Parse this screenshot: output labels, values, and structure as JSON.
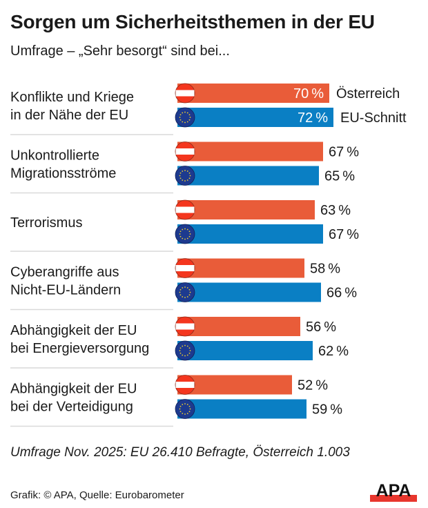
{
  "header": {
    "title": "Sorgen um Sicherheitsthemen in der EU",
    "subtitle": "Umfrage – „Sehr besorgt“ sind bei..."
  },
  "footer": {
    "note": "Umfrage Nov. 2025: EU 26.410 Befragte, Österreich 1.003",
    "credit": "Grafik: © APA, Quelle: Eurobarometer",
    "logo": "APA"
  },
  "colors": {
    "austria": "#e95c39",
    "eu": "#0a7fc4",
    "eu_flag": "#1d3a8f",
    "star": "#f2d22c",
    "logo_red": "#e8362d"
  },
  "chart_data": {
    "type": "bar",
    "orientation": "horizontal",
    "title": "Sorgen um Sicherheitsthemen in der EU",
    "subtitle": "Umfrage – „Sehr besorgt“ sind bei...",
    "unit": "%",
    "legend": [
      "Österreich",
      "EU-Schnitt"
    ],
    "legend_placement": "right of first group",
    "categories": [
      [
        "Konflikte und Kriege",
        "in der Nähe der EU"
      ],
      [
        "Unkontrollierte",
        "Migrationsströme"
      ],
      [
        "Terrorismus"
      ],
      [
        "Cyberangriffe aus",
        "Nicht-EU-Ländern"
      ],
      [
        "Abhängigkeit der EU",
        "bei Energieversorgung"
      ],
      [
        "Abhängigkeit der EU",
        "bei der Verteidigung"
      ]
    ],
    "series": [
      {
        "name": "Österreich",
        "values": [
          70,
          67,
          63,
          58,
          56,
          52
        ]
      },
      {
        "name": "EU-Schnitt",
        "values": [
          72,
          65,
          67,
          66,
          62,
          59
        ]
      }
    ],
    "xlim": [
      0,
      72
    ]
  }
}
